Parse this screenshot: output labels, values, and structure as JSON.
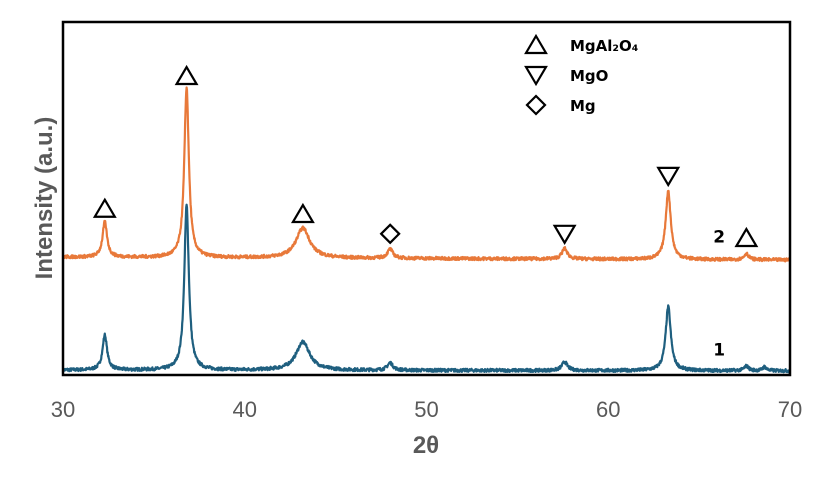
{
  "chart_data": {
    "type": "line",
    "title": "",
    "xlabel": "2θ",
    "ylabel": "Intensity (a.u.)",
    "xlim": [
      30,
      70
    ],
    "ylim": [
      0,
      100
    ],
    "xticks": [
      "30",
      "40",
      "50",
      "60",
      "70"
    ],
    "yticks": [],
    "grid": false,
    "series": [
      {
        "name": "1",
        "color": "#1f5f7f",
        "baseline": [
          1.4,
          1.2
        ],
        "peaks": [
          {
            "x": 32.3,
            "y": 11.3,
            "w": 0.15
          },
          {
            "x": 36.8,
            "y": 48.0,
            "w": 0.15
          },
          {
            "x": 43.2,
            "y": 9.3,
            "w": 0.45
          },
          {
            "x": 48.0,
            "y": 3.4,
            "w": 0.18
          },
          {
            "x": 57.6,
            "y": 3.7,
            "w": 0.18
          },
          {
            "x": 63.3,
            "y": 19.3,
            "w": 0.17
          },
          {
            "x": 67.6,
            "y": 2.5,
            "w": 0.15
          },
          {
            "x": 68.6,
            "y": 2.3,
            "w": 0.12
          }
        ]
      },
      {
        "name": "2",
        "color": "#e8793a",
        "baseline": [
          33.4,
          32.6
        ],
        "peaks": [
          {
            "x": 32.3,
            "y": 43.3,
            "w": 0.15
          },
          {
            "x": 36.8,
            "y": 81.3,
            "w": 0.15
          },
          {
            "x": 43.2,
            "y": 41.6,
            "w": 0.45
          },
          {
            "x": 48.0,
            "y": 35.6,
            "w": 0.18
          },
          {
            "x": 57.6,
            "y": 35.8,
            "w": 0.18
          },
          {
            "x": 63.3,
            "y": 52.0,
            "w": 0.17
          },
          {
            "x": 67.6,
            "y": 34.4,
            "w": 0.15
          }
        ]
      }
    ],
    "legend": {
      "placement": "top-center-right",
      "entries": [
        {
          "marker": "triangle-up",
          "label": "MgAl₂O₄"
        },
        {
          "marker": "triangle-down",
          "label": "MgO"
        },
        {
          "marker": "diamond",
          "label": "Mg"
        }
      ]
    },
    "annotations": [
      {
        "marker": "triangle-up",
        "x": 32.3,
        "y": 47.1
      },
      {
        "marker": "triangle-up",
        "x": 36.8,
        "y": 84.7
      },
      {
        "marker": "triangle-up",
        "x": 43.2,
        "y": 45.6
      },
      {
        "marker": "diamond",
        "x": 48.0,
        "y": 40.0
      },
      {
        "marker": "triangle-down",
        "x": 57.6,
        "y": 40.0
      },
      {
        "marker": "triangle-down",
        "x": 63.3,
        "y": 56.4
      },
      {
        "marker": "triangle-up",
        "x": 67.6,
        "y": 38.8
      }
    ],
    "series_labels": [
      {
        "text": "2",
        "x": 65.5,
        "y": 37.5
      },
      {
        "text": "1",
        "x": 65.5,
        "y": 5.5
      }
    ]
  }
}
